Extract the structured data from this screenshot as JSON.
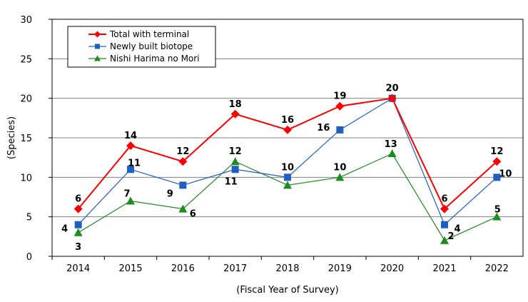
{
  "chart_data": {
    "type": "line",
    "xlabel": "(Fiscal Year of Survey)",
    "ylabel": "(Species)",
    "ylim": [
      0,
      30
    ],
    "yticks": [
      "0",
      "5",
      "10",
      "15",
      "20",
      "25",
      "30"
    ],
    "categories": [
      "2014",
      "2015",
      "2016",
      "2017",
      "2018",
      "2019",
      "2020",
      "2021",
      "2022"
    ],
    "grid": "horizontal",
    "legend_position": "top-left",
    "series": [
      {
        "name": "Total with terminal",
        "color": "#ff0000",
        "marker": "diamond",
        "values": [
          6,
          14,
          12,
          18,
          16,
          19,
          20,
          6,
          12
        ],
        "labels": [
          "6",
          "14",
          "12",
          "18",
          "16",
          "19",
          "20",
          "6",
          "12"
        ]
      },
      {
        "name": "Newly built biotope",
        "color": "#1f5fbf",
        "marker": "square",
        "values": [
          4,
          11,
          9,
          11,
          10,
          16,
          20,
          4,
          10
        ],
        "labels": [
          "4",
          "11",
          "9",
          "11",
          "10",
          "16",
          "",
          "4",
          "10"
        ]
      },
      {
        "name": "Nishi Harima no Mori",
        "color": "#1e8c1e",
        "marker": "triangle",
        "values": [
          3,
          7,
          6,
          12,
          9,
          10,
          13,
          2,
          5
        ],
        "labels": [
          "3",
          "7",
          "6",
          "12",
          "",
          "10",
          "13",
          "2",
          "5"
        ]
      }
    ]
  }
}
